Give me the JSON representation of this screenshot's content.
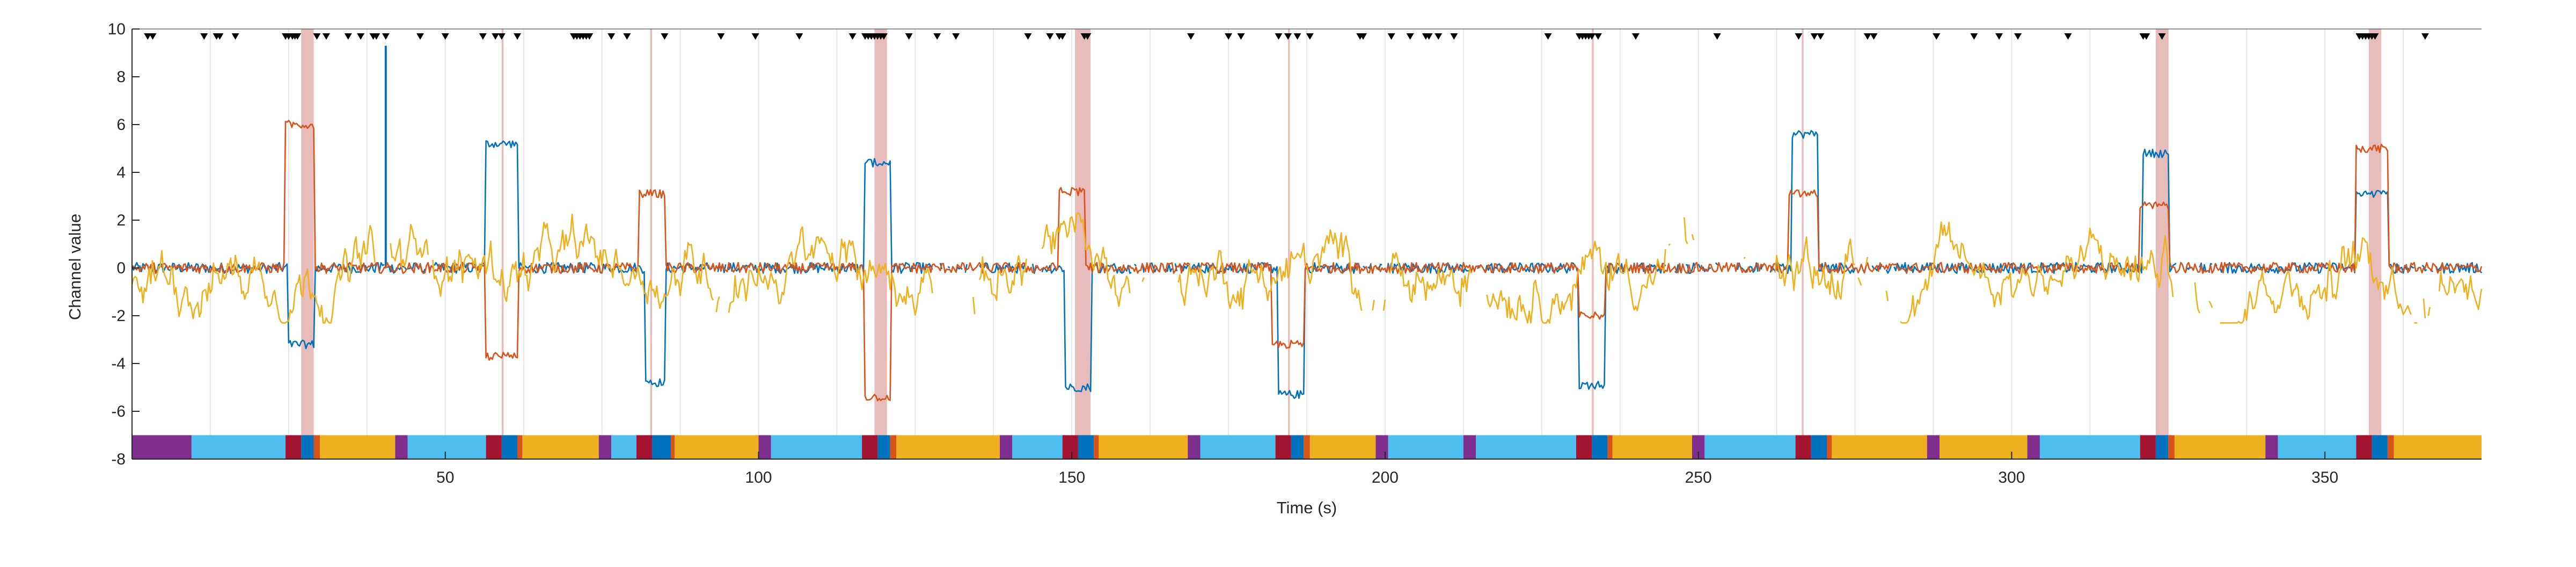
{
  "chart_data": {
    "type": "line",
    "title": "",
    "xlabel": "Time (s)",
    "ylabel": "Channel value",
    "xlim": [
      0,
      375
    ],
    "ylim": [
      -8,
      10
    ],
    "xticks": [
      50,
      100,
      150,
      200,
      250,
      300,
      350
    ],
    "yticks": [
      -8,
      -6,
      -4,
      -2,
      0,
      2,
      4,
      6,
      8,
      10
    ],
    "grid": "x-only",
    "colors": {
      "blue": "#0072BD",
      "red": "#D95319",
      "yellow": "#EDB120",
      "highlight": "#C0504D",
      "event_marker": "#000000"
    },
    "segment_colors": {
      "purple": "#7E2F8E",
      "cyan": "#4DBEEE",
      "crimson": "#A2142F",
      "blue": "#0072BD",
      "orange": "#D95319",
      "yellow": "#EDB120"
    },
    "series": [
      {
        "color": "blue",
        "baseline": 0,
        "spikes": [
          [
            40.5,
            9.3
          ]
        ],
        "levels": [
          [
            25,
            29,
            -3.2
          ],
          [
            56.5,
            61.5,
            5.2
          ],
          [
            82,
            85,
            -4.8
          ],
          [
            117,
            121,
            4.4
          ],
          [
            149,
            153,
            -5.0
          ],
          [
            183,
            187,
            -5.3
          ],
          [
            231,
            235,
            -4.9
          ],
          [
            265,
            269,
            5.6
          ],
          [
            321,
            325,
            4.8
          ],
          [
            355,
            360,
            3.1
          ]
        ]
      },
      {
        "color": "red",
        "baseline": 0,
        "spikes": [],
        "levels": [
          [
            24.5,
            29,
            6.0
          ],
          [
            56.5,
            61.5,
            -3.7
          ],
          [
            81,
            85,
            3.1
          ],
          [
            117,
            121,
            -5.4
          ],
          [
            148,
            152,
            3.2
          ],
          [
            182,
            187,
            -3.2
          ],
          [
            231,
            235,
            -2.0
          ],
          [
            264.5,
            269,
            3.1
          ],
          [
            320.5,
            325,
            2.6
          ],
          [
            355,
            360,
            5.0
          ]
        ]
      },
      {
        "color": "yellow",
        "baseline": 0,
        "noise": 0.9,
        "spikes": [],
        "levels": []
      }
    ],
    "highlight_regions": [
      [
        27,
        29
      ],
      [
        59,
        59.3
      ],
      [
        82.7,
        83
      ],
      [
        118.5,
        120.5
      ],
      [
        150.5,
        153
      ],
      [
        184.5,
        184.8
      ],
      [
        233,
        233.3
      ],
      [
        266.5,
        266.8
      ],
      [
        323,
        325
      ],
      [
        357,
        359
      ]
    ],
    "event_markers": [
      2.5,
      3.3,
      11.5,
      13.5,
      14,
      16.5,
      24.5,
      25,
      25.6,
      26,
      26.4,
      29.5,
      31,
      34.5,
      36.5,
      38.5,
      39,
      40.5,
      46,
      50,
      56,
      58,
      59,
      61.5,
      70.5,
      71,
      71.5,
      72,
      72.5,
      73,
      76.5,
      79,
      85,
      94,
      99.5,
      106.5,
      115,
      117,
      117.5,
      118,
      118.5,
      119,
      119.5,
      120,
      124,
      128.5,
      131.5,
      143,
      146.5,
      148,
      148.5,
      152,
      152.5,
      169,
      175,
      177,
      183,
      184.5,
      186,
      188,
      196,
      196.5,
      201,
      204,
      206.5,
      207,
      208.5,
      211,
      226,
      231,
      231.5,
      232,
      232.5,
      233,
      234,
      240,
      253,
      266,
      268.5,
      269.5,
      277,
      278,
      288,
      294,
      298,
      301,
      309,
      321,
      321.5,
      324,
      355.5,
      356,
      356.5,
      357,
      357.5,
      358,
      366
    ],
    "state_bar": {
      "y_range": [
        -8,
        -7
      ],
      "segments": [
        [
          0,
          9.5,
          "purple"
        ],
        [
          9.5,
          24.5,
          "cyan"
        ],
        [
          24.5,
          27,
          "crimson"
        ],
        [
          27,
          29,
          "blue"
        ],
        [
          29,
          30,
          "orange"
        ],
        [
          30,
          42,
          "yellow"
        ],
        [
          42,
          44,
          "purple"
        ],
        [
          44,
          56.5,
          "cyan"
        ],
        [
          56.5,
          59,
          "crimson"
        ],
        [
          59,
          61.5,
          "blue"
        ],
        [
          61.5,
          62.3,
          "orange"
        ],
        [
          62.3,
          74.5,
          "yellow"
        ],
        [
          74.5,
          76.5,
          "purple"
        ],
        [
          76.5,
          80.5,
          "cyan"
        ],
        [
          80.5,
          83,
          "crimson"
        ],
        [
          83,
          86,
          "blue"
        ],
        [
          86,
          86.6,
          "orange"
        ],
        [
          86.6,
          100,
          "yellow"
        ],
        [
          100,
          102,
          "purple"
        ],
        [
          102,
          116.5,
          "cyan"
        ],
        [
          116.5,
          119,
          "crimson"
        ],
        [
          119,
          121,
          "blue"
        ],
        [
          121,
          122,
          "orange"
        ],
        [
          122,
          138.5,
          "yellow"
        ],
        [
          138.5,
          140.5,
          "purple"
        ],
        [
          140.5,
          148.5,
          "cyan"
        ],
        [
          148.5,
          151,
          "crimson"
        ],
        [
          151,
          153.5,
          "blue"
        ],
        [
          153.5,
          154.3,
          "orange"
        ],
        [
          154.3,
          168.5,
          "yellow"
        ],
        [
          168.5,
          170.5,
          "purple"
        ],
        [
          170.5,
          182.5,
          "cyan"
        ],
        [
          182.5,
          185,
          "crimson"
        ],
        [
          185,
          187,
          "blue"
        ],
        [
          187,
          188,
          "orange"
        ],
        [
          188,
          198.5,
          "yellow"
        ],
        [
          198.5,
          200.5,
          "purple"
        ],
        [
          200.5,
          212.5,
          "cyan"
        ],
        [
          212.5,
          214.5,
          "purple"
        ],
        [
          214.5,
          230.5,
          "cyan"
        ],
        [
          230.5,
          233,
          "crimson"
        ],
        [
          233,
          235.5,
          "blue"
        ],
        [
          235.5,
          236.3,
          "orange"
        ],
        [
          236.3,
          249,
          "yellow"
        ],
        [
          249,
          251,
          "purple"
        ],
        [
          251,
          265.5,
          "cyan"
        ],
        [
          265.5,
          268,
          "crimson"
        ],
        [
          268,
          270.5,
          "blue"
        ],
        [
          270.5,
          271.3,
          "orange"
        ],
        [
          271.3,
          286.5,
          "yellow"
        ],
        [
          286.5,
          288.5,
          "purple"
        ],
        [
          288.5,
          302.5,
          "yellow"
        ],
        [
          302.5,
          304.5,
          "purple"
        ],
        [
          304.5,
          320.5,
          "cyan"
        ],
        [
          320.5,
          323,
          "crimson"
        ],
        [
          323,
          325,
          "blue"
        ],
        [
          325,
          326,
          "orange"
        ],
        [
          326,
          340.5,
          "yellow"
        ],
        [
          340.5,
          342.5,
          "purple"
        ],
        [
          342.5,
          355,
          "cyan"
        ],
        [
          355,
          357.5,
          "crimson"
        ],
        [
          357.5,
          360,
          "blue"
        ],
        [
          360,
          361,
          "orange"
        ],
        [
          361,
          375,
          "yellow"
        ]
      ]
    }
  }
}
